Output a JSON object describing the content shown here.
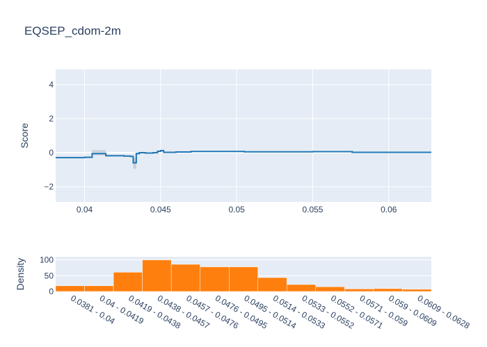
{
  "chart_data": [
    {
      "type": "line",
      "title": "EQSEP_cdom-2m",
      "xlabel": "",
      "ylabel": "Score",
      "xlim": [
        0.0381,
        0.0628
      ],
      "ylim": [
        -2.9,
        4.9
      ],
      "xticks": [
        0.04,
        0.045,
        0.05,
        0.055,
        0.06
      ],
      "xtick_labels": [
        "0.04",
        "0.045",
        "0.05",
        "0.055",
        "0.06"
      ],
      "yticks": [
        -2,
        0,
        2,
        4
      ],
      "ytick_labels": [
        "−2",
        "0",
        "2",
        "4"
      ],
      "grid": true,
      "series": [
        {
          "color": "#1f77b4",
          "line_shape": "step",
          "x": [
            0.0381,
            0.04,
            0.0405,
            0.0414,
            0.0422,
            0.0426,
            0.043,
            0.0432,
            0.0434,
            0.0436,
            0.044,
            0.0445,
            0.0448,
            0.045,
            0.0452,
            0.046,
            0.047,
            0.05,
            0.0505,
            0.052,
            0.055,
            0.057,
            0.0576,
            0.059,
            0.0628
          ],
          "y": [
            -0.29,
            -0.27,
            -0.05,
            -0.18,
            -0.18,
            -0.2,
            -0.22,
            -0.6,
            -0.05,
            0.0,
            -0.02,
            0.0,
            0.08,
            0.12,
            0.02,
            0.04,
            0.07,
            0.07,
            0.05,
            0.05,
            0.06,
            0.06,
            0.02,
            0.02,
            0.02
          ],
          "lower": [
            -0.29,
            -0.27,
            -0.15,
            -0.22,
            -0.2,
            -0.22,
            -0.25,
            -0.95,
            -0.12,
            -0.04,
            -0.05,
            -0.03,
            0.04,
            0.07,
            0.0,
            0.02,
            0.05,
            0.05,
            0.03,
            0.03,
            0.04,
            0.04,
            0.0,
            0.0,
            0.0
          ],
          "upper": [
            -0.29,
            -0.27,
            0.15,
            -0.14,
            -0.16,
            -0.18,
            -0.19,
            -0.3,
            0.02,
            0.04,
            0.01,
            0.03,
            0.12,
            0.17,
            0.04,
            0.06,
            0.09,
            0.09,
            0.07,
            0.07,
            0.08,
            0.08,
            0.04,
            0.04,
            0.04
          ]
        }
      ]
    },
    {
      "type": "bar",
      "xlabel": "",
      "ylabel": "Density",
      "ylim": [
        0,
        110
      ],
      "yticks": [
        0,
        50,
        100
      ],
      "ytick_labels": [
        "0",
        "50",
        "100"
      ],
      "color": "#ff7f0e",
      "categories": [
        "0.0381 - 0.04",
        "0.04 - 0.0419",
        "0.0419 - 0.0438",
        "0.0438 - 0.0457",
        "0.0457 - 0.0476",
        "0.0476 - 0.0495",
        "0.0495 - 0.0514",
        "0.0514 - 0.0533",
        "0.0533 - 0.0552",
        "0.0552 - 0.0571",
        "0.0571 - 0.059",
        "0.059 - 0.0609",
        "0.0609 - 0.0628"
      ],
      "values": [
        18,
        18,
        61,
        100,
        86,
        78,
        78,
        44,
        22,
        15,
        8,
        9,
        7
      ]
    }
  ]
}
